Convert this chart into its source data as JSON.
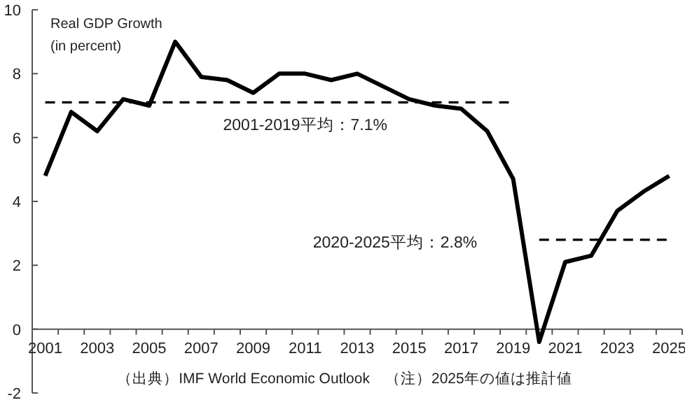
{
  "chart_data": {
    "type": "line",
    "ylabel": "Real GDP Growth\n(in percent)",
    "categories": [
      "2001",
      null,
      "2003",
      null,
      "2005",
      null,
      "2007",
      null,
      "2009",
      null,
      "2011",
      null,
      "2013",
      null,
      "2015",
      null,
      "2017",
      null,
      "2019",
      null,
      "2021",
      null,
      "2023",
      null,
      "2025"
    ],
    "series": [
      {
        "color": "#000000",
        "line_style": "solid",
        "values": [
          4.8,
          6.8,
          6.2,
          7.2,
          7.0,
          9.0,
          7.9,
          7.8,
          7.4,
          8.0,
          8.0,
          7.8,
          8.0,
          7.6,
          7.2,
          7.0,
          6.9,
          6.2,
          4.7,
          -0.4,
          2.1,
          2.3,
          3.7,
          4.3,
          4.8
        ]
      },
      {
        "color": "#000000",
        "line_style": "dashed",
        "values": [
          7.1,
          7.1,
          7.1,
          7.1,
          7.1,
          7.1,
          7.1,
          7.1,
          7.1,
          7.1,
          7.1,
          7.1,
          7.1,
          7.1,
          7.1,
          7.1,
          7.1,
          7.1,
          7.1,
          null,
          null,
          null,
          null,
          null,
          null
        ]
      },
      {
        "color": "#000000",
        "line_style": "dashed",
        "values": [
          null,
          null,
          null,
          null,
          null,
          null,
          null,
          null,
          null,
          null,
          null,
          null,
          null,
          null,
          null,
          null,
          null,
          null,
          null,
          2.8,
          2.8,
          2.8,
          2.8,
          2.8,
          2.8
        ]
      }
    ],
    "ylim": [
      -2,
      10
    ],
    "yticks": [
      -2,
      0,
      2,
      4,
      6,
      8,
      10
    ],
    "annotations": [
      {
        "text": "2001-2019平均：7.1%",
        "x": "2011",
        "y": 7.1
      },
      "2020-2025平均：2.8%",
      "（出典）IMF World Economic Outlook　（注）2025年の値は推計値"
    ]
  }
}
